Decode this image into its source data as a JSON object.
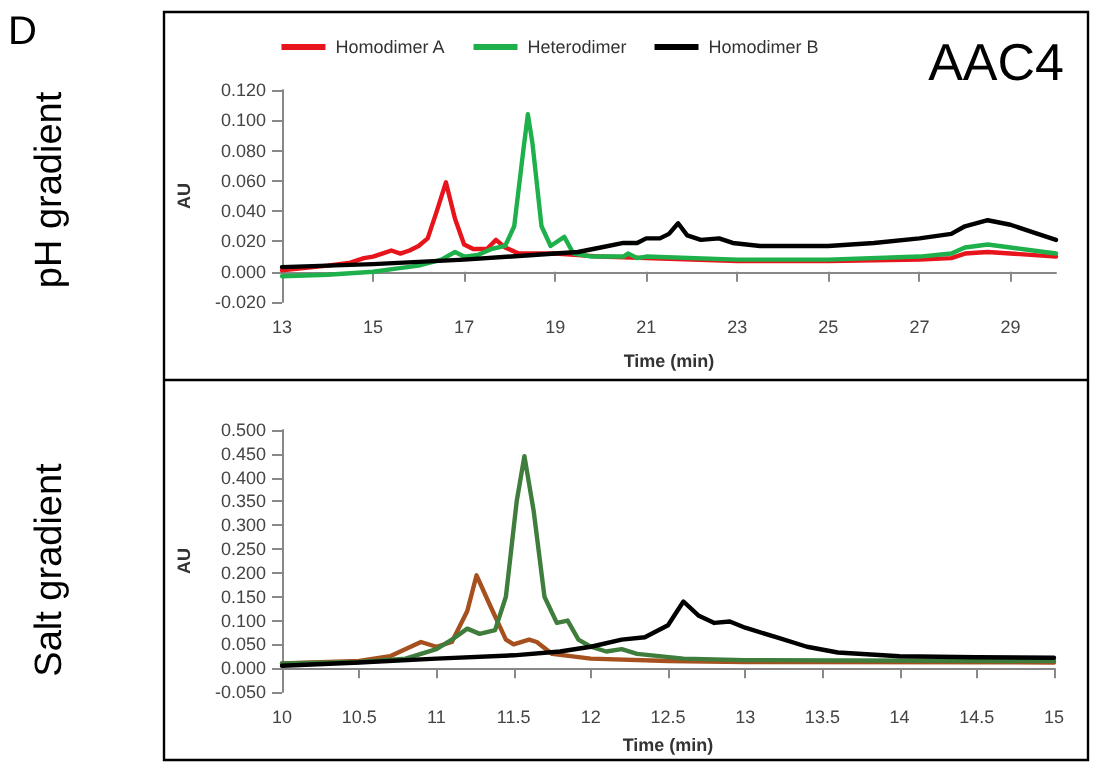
{
  "chart_data": [
    {
      "type": "line",
      "xlabel": "Time (min)",
      "ylabel": "AU",
      "annotations": [
        "D",
        "pH gradient",
        "AAC4"
      ],
      "legend": "top",
      "grid": false,
      "marker": "none",
      "line_style": "solid",
      "xlim": [
        13,
        30
      ],
      "xticks": [
        13,
        15,
        17,
        19,
        21,
        23,
        25,
        27,
        29
      ],
      "ylim": [
        -0.02,
        0.12
      ],
      "yticks": [
        {
          "value": -0.02,
          "label": "-0.020"
        },
        {
          "value": 0,
          "label": "0.000"
        },
        {
          "value": 0.02,
          "label": "0.020"
        },
        {
          "value": 0.04,
          "label": "0.040"
        },
        {
          "value": 0.06,
          "label": "0.060"
        },
        {
          "value": 0.08,
          "label": "0.080"
        },
        {
          "value": 0.1,
          "label": "0.100"
        },
        {
          "value": 0.12,
          "label": "0.120"
        }
      ],
      "series": [
        {
          "name": "Homodimer A",
          "color": "#e8141c",
          "x": [
            13,
            14,
            14.5,
            14.8,
            15,
            15.2,
            15.4,
            15.6,
            15.8,
            16,
            16.2,
            16.4,
            16.6,
            16.8,
            17,
            17.2,
            17.5,
            17.7,
            17.9,
            18.2,
            19,
            20,
            21,
            23,
            25,
            27,
            27.7,
            28,
            28.5,
            29,
            30
          ],
          "values": [
            0.001,
            0.004,
            0.006,
            0.009,
            0.01,
            0.012,
            0.014,
            0.012,
            0.014,
            0.017,
            0.022,
            0.04,
            0.059,
            0.035,
            0.018,
            0.015,
            0.015,
            0.021,
            0.016,
            0.012,
            0.012,
            0.01,
            0.009,
            0.007,
            0.007,
            0.008,
            0.009,
            0.012,
            0.013,
            0.012,
            0.01
          ]
        },
        {
          "name": "Heterodimer",
          "color": "#1db04b",
          "x": [
            13,
            14,
            15,
            15.5,
            16,
            16.5,
            16.8,
            17,
            17.3,
            17.6,
            17.9,
            18.1,
            18.3,
            18.4,
            18.5,
            18.7,
            18.9,
            19.2,
            19.4,
            19.8,
            20.5,
            20.6,
            20.8,
            21,
            23,
            25,
            27,
            27.7,
            28,
            28.5,
            29,
            30
          ],
          "values": [
            -0.003,
            -0.002,
            0.0,
            0.002,
            0.004,
            0.008,
            0.013,
            0.01,
            0.011,
            0.015,
            0.017,
            0.03,
            0.08,
            0.104,
            0.085,
            0.03,
            0.017,
            0.023,
            0.012,
            0.01,
            0.01,
            0.012,
            0.009,
            0.01,
            0.008,
            0.008,
            0.01,
            0.012,
            0.016,
            0.018,
            0.016,
            0.012
          ]
        },
        {
          "name": "Homodimer B",
          "color": "#000000",
          "x": [
            13,
            15,
            17,
            19,
            19.5,
            20,
            20.5,
            20.8,
            21,
            21.3,
            21.5,
            21.7,
            21.9,
            22.2,
            22.6,
            22.9,
            23.5,
            25,
            26,
            27,
            27.7,
            28,
            28.5,
            29,
            29.5,
            30
          ],
          "values": [
            0.003,
            0.005,
            0.008,
            0.012,
            0.013,
            0.016,
            0.019,
            0.019,
            0.022,
            0.022,
            0.025,
            0.032,
            0.024,
            0.021,
            0.022,
            0.019,
            0.017,
            0.017,
            0.019,
            0.022,
            0.025,
            0.03,
            0.034,
            0.031,
            0.026,
            0.021
          ]
        }
      ]
    },
    {
      "type": "line",
      "xlabel": "Time (min)",
      "ylabel": "AU",
      "annotations": [
        "Salt gradient"
      ],
      "grid": false,
      "marker": "none",
      "line_style": "solid",
      "xlim": [
        10,
        15
      ],
      "xticks": [
        10,
        10.5,
        11,
        11.5,
        12,
        12.5,
        13,
        13.5,
        14,
        14.5,
        15
      ],
      "ylim": [
        -0.05,
        0.5
      ],
      "yticks": [
        {
          "value": -0.05,
          "label": "-0.050"
        },
        {
          "value": 0,
          "label": "0.000"
        },
        {
          "value": 0.05,
          "label": "0.050"
        },
        {
          "value": 0.1,
          "label": "0.100"
        },
        {
          "value": 0.15,
          "label": "0.150"
        },
        {
          "value": 0.2,
          "label": "0.200"
        },
        {
          "value": 0.25,
          "label": "0.250"
        },
        {
          "value": 0.3,
          "label": "0.300"
        },
        {
          "value": 0.35,
          "label": "0.350"
        },
        {
          "value": 0.4,
          "label": "0.400"
        },
        {
          "value": 0.45,
          "label": "0.450"
        },
        {
          "value": 0.5,
          "label": "0.500"
        }
      ],
      "series": [
        {
          "color": "#a5501e",
          "x": [
            10,
            10.5,
            10.7,
            10.9,
            11,
            11.1,
            11.2,
            11.26,
            11.35,
            11.45,
            11.5,
            11.6,
            11.65,
            11.75,
            12,
            12.5,
            13,
            15
          ],
          "values": [
            0.01,
            0.015,
            0.025,
            0.055,
            0.045,
            0.055,
            0.12,
            0.195,
            0.13,
            0.06,
            0.05,
            0.06,
            0.055,
            0.03,
            0.02,
            0.015,
            0.013,
            0.012
          ]
        },
        {
          "color": "#3f7d3c",
          "x": [
            10,
            10.5,
            10.8,
            11,
            11.1,
            11.2,
            11.28,
            11.38,
            11.45,
            11.52,
            11.57,
            11.63,
            11.7,
            11.78,
            11.85,
            11.92,
            12,
            12.1,
            12.2,
            12.3,
            12.6,
            13,
            15
          ],
          "values": [
            0.01,
            0.013,
            0.02,
            0.04,
            0.06,
            0.083,
            0.072,
            0.08,
            0.15,
            0.35,
            0.445,
            0.33,
            0.15,
            0.095,
            0.1,
            0.06,
            0.045,
            0.035,
            0.04,
            0.03,
            0.02,
            0.017,
            0.015
          ]
        },
        {
          "color": "#000000",
          "x": [
            10,
            10.5,
            11,
            11.5,
            11.8,
            12,
            12.2,
            12.35,
            12.5,
            12.6,
            12.7,
            12.8,
            12.9,
            13,
            13.2,
            13.4,
            13.6,
            14,
            14.5,
            15
          ],
          "values": [
            0.005,
            0.012,
            0.02,
            0.027,
            0.035,
            0.045,
            0.06,
            0.065,
            0.09,
            0.14,
            0.11,
            0.095,
            0.098,
            0.085,
            0.065,
            0.045,
            0.033,
            0.025,
            0.023,
            0.022
          ]
        }
      ]
    }
  ]
}
